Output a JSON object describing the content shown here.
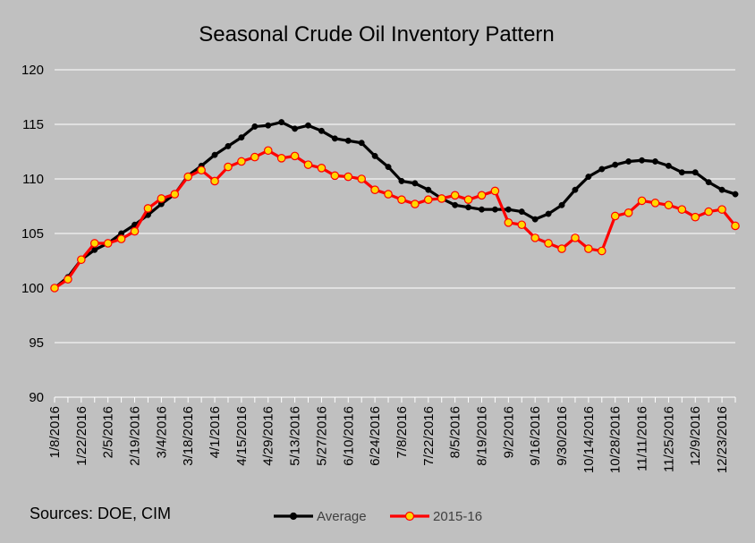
{
  "chart_data": {
    "type": "line",
    "title": "Seasonal Crude Oil Inventory Pattern",
    "xlabel": "",
    "ylabel": "",
    "ylim": [
      90,
      120
    ],
    "yticks": [
      "90",
      "95",
      "100",
      "105",
      "110",
      "115",
      "120"
    ],
    "grid": true,
    "legend_position": "bottom",
    "xtick_labels": [
      "1/8/2016",
      "1/22/2016",
      "2/5/2016",
      "2/19/2016",
      "3/4/2016",
      "3/18/2016",
      "4/1/2016",
      "4/15/2016",
      "4/29/2016",
      "5/13/2016",
      "5/27/2016",
      "6/10/2016",
      "6/24/2016",
      "7/8/2016",
      "7/22/2016",
      "8/5/2016",
      "8/19/2016",
      "9/2/2016",
      "9/16/2016",
      "9/30/2016",
      "10/14/2016",
      "10/28/2016",
      "11/11/2016",
      "11/25/2016",
      "12/9/2016",
      "12/23/2016"
    ],
    "series": [
      {
        "name": "Average",
        "color": "#000000",
        "marker_color": "#000000",
        "values": [
          100.0,
          101.0,
          102.6,
          103.5,
          104.1,
          105.0,
          105.8,
          106.7,
          107.7,
          108.6,
          110.3,
          111.2,
          112.2,
          113.0,
          113.8,
          114.8,
          114.9,
          115.2,
          114.6,
          114.9,
          114.4,
          113.7,
          113.5,
          113.3,
          112.1,
          111.1,
          109.8,
          109.6,
          109.0,
          108.2,
          107.6,
          107.4,
          107.2,
          107.2,
          107.2,
          107.0,
          106.3,
          106.8,
          107.6,
          109.0,
          110.2,
          110.9,
          111.3,
          111.6,
          111.7,
          111.6,
          111.2,
          110.6,
          110.6,
          109.7,
          109.0,
          108.6
        ]
      },
      {
        "name": "2015-16",
        "color": "#ff0000",
        "marker_color": "#ffd700",
        "values": [
          100.0,
          100.8,
          102.6,
          104.1,
          104.1,
          104.5,
          105.2,
          107.3,
          108.2,
          108.6,
          110.2,
          110.8,
          109.8,
          111.1,
          111.6,
          112.0,
          112.6,
          111.9,
          112.1,
          111.3,
          111.0,
          110.3,
          110.2,
          110.0,
          109.0,
          108.6,
          108.1,
          107.7,
          108.1,
          108.2,
          108.5,
          108.1,
          108.5,
          108.9,
          106.0,
          105.8,
          104.6,
          104.1,
          103.6,
          104.6,
          103.6,
          103.4,
          106.6,
          106.9,
          108.0,
          107.8,
          107.6,
          107.2,
          106.5,
          107.0,
          107.2,
          105.7
        ]
      }
    ]
  },
  "sources_text": "Sources:  DOE, CIM"
}
